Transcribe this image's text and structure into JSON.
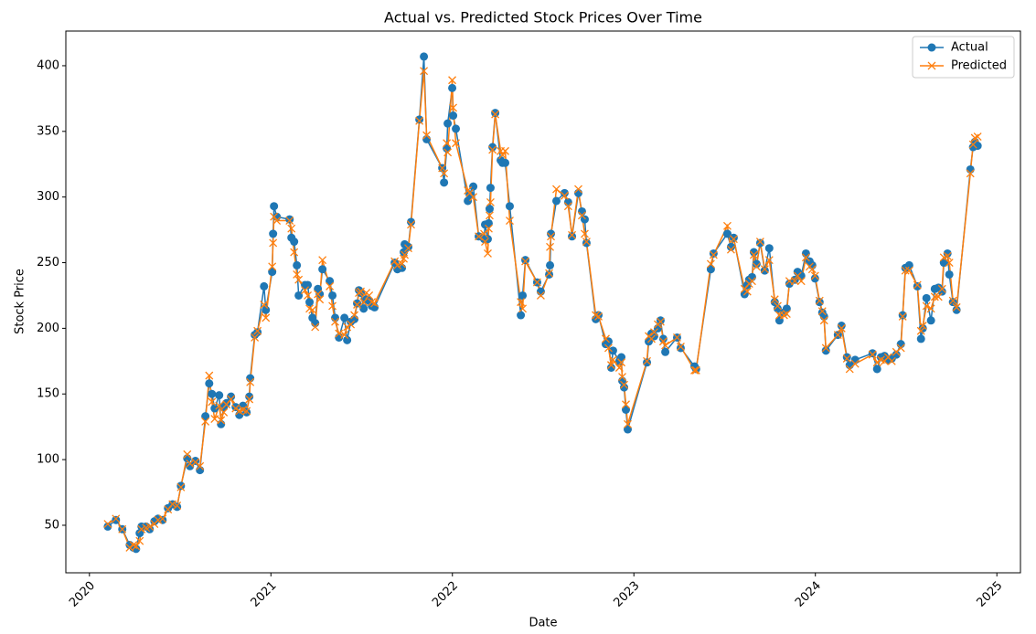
{
  "chart_data": {
    "type": "line",
    "title": "Actual vs. Predicted Stock Prices Over Time",
    "xlabel": "Date",
    "ylabel": "Stock Price",
    "x": [
      2020.101,
      2020.146,
      2020.181,
      2020.222,
      2020.242,
      2020.257,
      2020.277,
      2020.287,
      2020.312,
      2020.332,
      2020.358,
      2020.378,
      2020.403,
      2020.433,
      2020.458,
      2020.483,
      2020.504,
      2020.539,
      2020.554,
      2020.584,
      2020.609,
      2020.639,
      2020.66,
      2020.675,
      2020.69,
      2020.715,
      2020.725,
      2020.74,
      2020.755,
      2020.78,
      2020.806,
      2020.826,
      2020.846,
      2020.866,
      2020.881,
      2020.886,
      2020.911,
      2020.926,
      2020.962,
      2020.972,
      2021.007,
      2021.012,
      2021.017,
      2021.032,
      2021.103,
      2021.113,
      2021.128,
      2021.143,
      2021.153,
      2021.188,
      2021.203,
      2021.213,
      2021.229,
      2021.244,
      2021.259,
      2021.269,
      2021.284,
      2021.324,
      2021.339,
      2021.354,
      2021.375,
      2021.405,
      2021.42,
      2021.44,
      2021.46,
      2021.475,
      2021.485,
      2021.495,
      2021.511,
      2021.526,
      2021.541,
      2021.556,
      2021.571,
      2021.682,
      2021.697,
      2021.722,
      2021.732,
      2021.737,
      2021.757,
      2021.772,
      2021.818,
      2021.843,
      2021.858,
      2021.944,
      2021.954,
      2021.969,
      2021.974,
      2021.999,
      2022.004,
      2022.019,
      2022.085,
      2022.095,
      2022.115,
      2022.145,
      2022.175,
      2022.18,
      2022.195,
      2022.2,
      2022.205,
      2022.21,
      2022.221,
      2022.236,
      2022.266,
      2022.276,
      2022.291,
      2022.316,
      2022.377,
      2022.387,
      2022.402,
      2022.467,
      2022.487,
      2022.533,
      2022.538,
      2022.543,
      2022.573,
      2022.618,
      2022.638,
      2022.659,
      2022.694,
      2022.714,
      2022.729,
      2022.739,
      2022.79,
      2022.805,
      2022.845,
      2022.86,
      2022.875,
      2022.885,
      2022.92,
      2022.931,
      2022.936,
      2022.946,
      2022.956,
      2022.966,
      2023.072,
      2023.082,
      2023.097,
      2023.112,
      2023.132,
      2023.147,
      2023.162,
      2023.173,
      2023.238,
      2023.258,
      2023.334,
      2023.343,
      2023.424,
      2023.439,
      2023.515,
      2023.535,
      2023.55,
      2023.61,
      2023.625,
      2023.635,
      2023.651,
      2023.661,
      2023.676,
      2023.696,
      2023.721,
      2023.746,
      2023.776,
      2023.792,
      2023.802,
      2023.827,
      2023.842,
      2023.857,
      2023.887,
      2023.902,
      2023.922,
      2023.948,
      2023.968,
      2023.983,
      2023.998,
      2024.023,
      2024.038,
      2024.048,
      2024.058,
      2024.124,
      2024.144,
      2024.174,
      2024.189,
      2024.219,
      2024.315,
      2024.34,
      2024.361,
      2024.381,
      2024.401,
      2024.421,
      2024.446,
      2024.471,
      2024.481,
      2024.496,
      2024.517,
      2024.562,
      2024.582,
      2024.592,
      2024.612,
      2024.637,
      2024.658,
      2024.678,
      2024.698,
      2024.708,
      2024.728,
      2024.738,
      2024.758,
      2024.778,
      2024.854,
      2024.869,
      2024.879,
      2024.894
    ],
    "series": [
      {
        "name": "Actual",
        "color": "#1f77b4",
        "marker": "o",
        "values": [
          49,
          54,
          47,
          35,
          33,
          32,
          44,
          49,
          49,
          47,
          53,
          55,
          54,
          63,
          66,
          64,
          80,
          101,
          95,
          99,
          92,
          133,
          158,
          150,
          139,
          149,
          127,
          140,
          143,
          148,
          140,
          134,
          141,
          136,
          148,
          162,
          195,
          197,
          232,
          214,
          243,
          272,
          293,
          285,
          283,
          269,
          266,
          248,
          225,
          233,
          233,
          220,
          208,
          204,
          230,
          226,
          245,
          236,
          225,
          208,
          193,
          208,
          191,
          205,
          207,
          219,
          229,
          227,
          215,
          222,
          221,
          217,
          216,
          250,
          245,
          246,
          258,
          264,
          262,
          281,
          359,
          407,
          344,
          322,
          311,
          337,
          356,
          383,
          362,
          352,
          297,
          302,
          308,
          270,
          268,
          279,
          268,
          280,
          291,
          307,
          338,
          364,
          328,
          326,
          326,
          293,
          210,
          225,
          252,
          235,
          228,
          241,
          248,
          272,
          297,
          303,
          296,
          270,
          303,
          289,
          283,
          265,
          207,
          210,
          188,
          190,
          170,
          183,
          175,
          178,
          160,
          155,
          138,
          123,
          174,
          190,
          196,
          194,
          200,
          206,
          192,
          182,
          193,
          185,
          171,
          169,
          245,
          257,
          272,
          262,
          269,
          226,
          233,
          237,
          239,
          258,
          249,
          265,
          244,
          261,
          220,
          215,
          206,
          212,
          215,
          234,
          237,
          243,
          240,
          257,
          251,
          248,
          238,
          220,
          212,
          209,
          183,
          195,
          202,
          178,
          172,
          176,
          181,
          169,
          178,
          179,
          176,
          177,
          180,
          188,
          210,
          246,
          248,
          232,
          192,
          200,
          223,
          206,
          230,
          231,
          228,
          250,
          257,
          241,
          220,
          214,
          321,
          338,
          342,
          339
        ]
      },
      {
        "name": "Predicted",
        "color": "#ff7f0e",
        "marker": "x",
        "values": [
          51,
          55,
          47,
          33,
          35,
          34,
          38,
          47,
          48,
          49,
          51,
          54,
          55,
          62,
          66,
          65,
          79,
          104,
          97,
          98,
          95,
          129,
          164,
          144,
          131,
          141,
          130,
          136,
          142,
          146,
          139,
          137,
          138,
          137,
          146,
          159,
          193,
          198,
          218,
          208,
          247,
          265,
          285,
          282,
          282,
          276,
          258,
          241,
          237,
          229,
          225,
          215,
          214,
          201,
          226,
          222,
          252,
          232,
          217,
          205,
          196,
          195,
          201,
          203,
          210,
          218,
          227,
          228,
          220,
          227,
          225,
          220,
          219,
          251,
          248,
          249,
          253,
          256,
          261,
          279,
          358,
          396,
          347,
          322,
          318,
          341,
          334,
          389,
          368,
          341,
          305,
          303,
          300,
          270,
          272,
          266,
          257,
          276,
          286,
          296,
          336,
          363,
          335,
          332,
          335,
          282,
          220,
          215,
          251,
          235,
          225,
          242,
          262,
          270,
          306,
          301,
          293,
          271,
          306,
          286,
          272,
          266,
          210,
          209,
          192,
          185,
          172,
          176,
          170,
          174,
          163,
          157,
          142,
          127,
          175,
          194,
          192,
          197,
          203,
          205,
          190,
          187,
          193,
          186,
          168,
          168,
          249,
          256,
          278,
          260,
          268,
          230,
          228,
          234,
          236,
          256,
          247,
          266,
          245,
          252,
          222,
          217,
          210,
          210,
          211,
          236,
          236,
          240,
          236,
          254,
          247,
          245,
          240,
          221,
          213,
          206,
          185,
          195,
          200,
          177,
          169,
          173,
          180,
          174,
          176,
          175,
          178,
          175,
          182,
          185,
          209,
          244,
          244,
          233,
          198,
          202,
          217,
          215,
          224,
          224,
          230,
          254,
          255,
          250,
          221,
          216,
          318,
          340,
          345,
          346
        ]
      }
    ],
    "xlim": [
      2019.87,
      2025.13
    ],
    "xticks": [
      2020,
      2021,
      2022,
      2023,
      2024,
      2025
    ],
    "ylim": [
      13.8,
      426.4
    ],
    "yticks": [
      50,
      100,
      150,
      200,
      250,
      300,
      350,
      400
    ],
    "legend": "upper right",
    "grid": false
  }
}
